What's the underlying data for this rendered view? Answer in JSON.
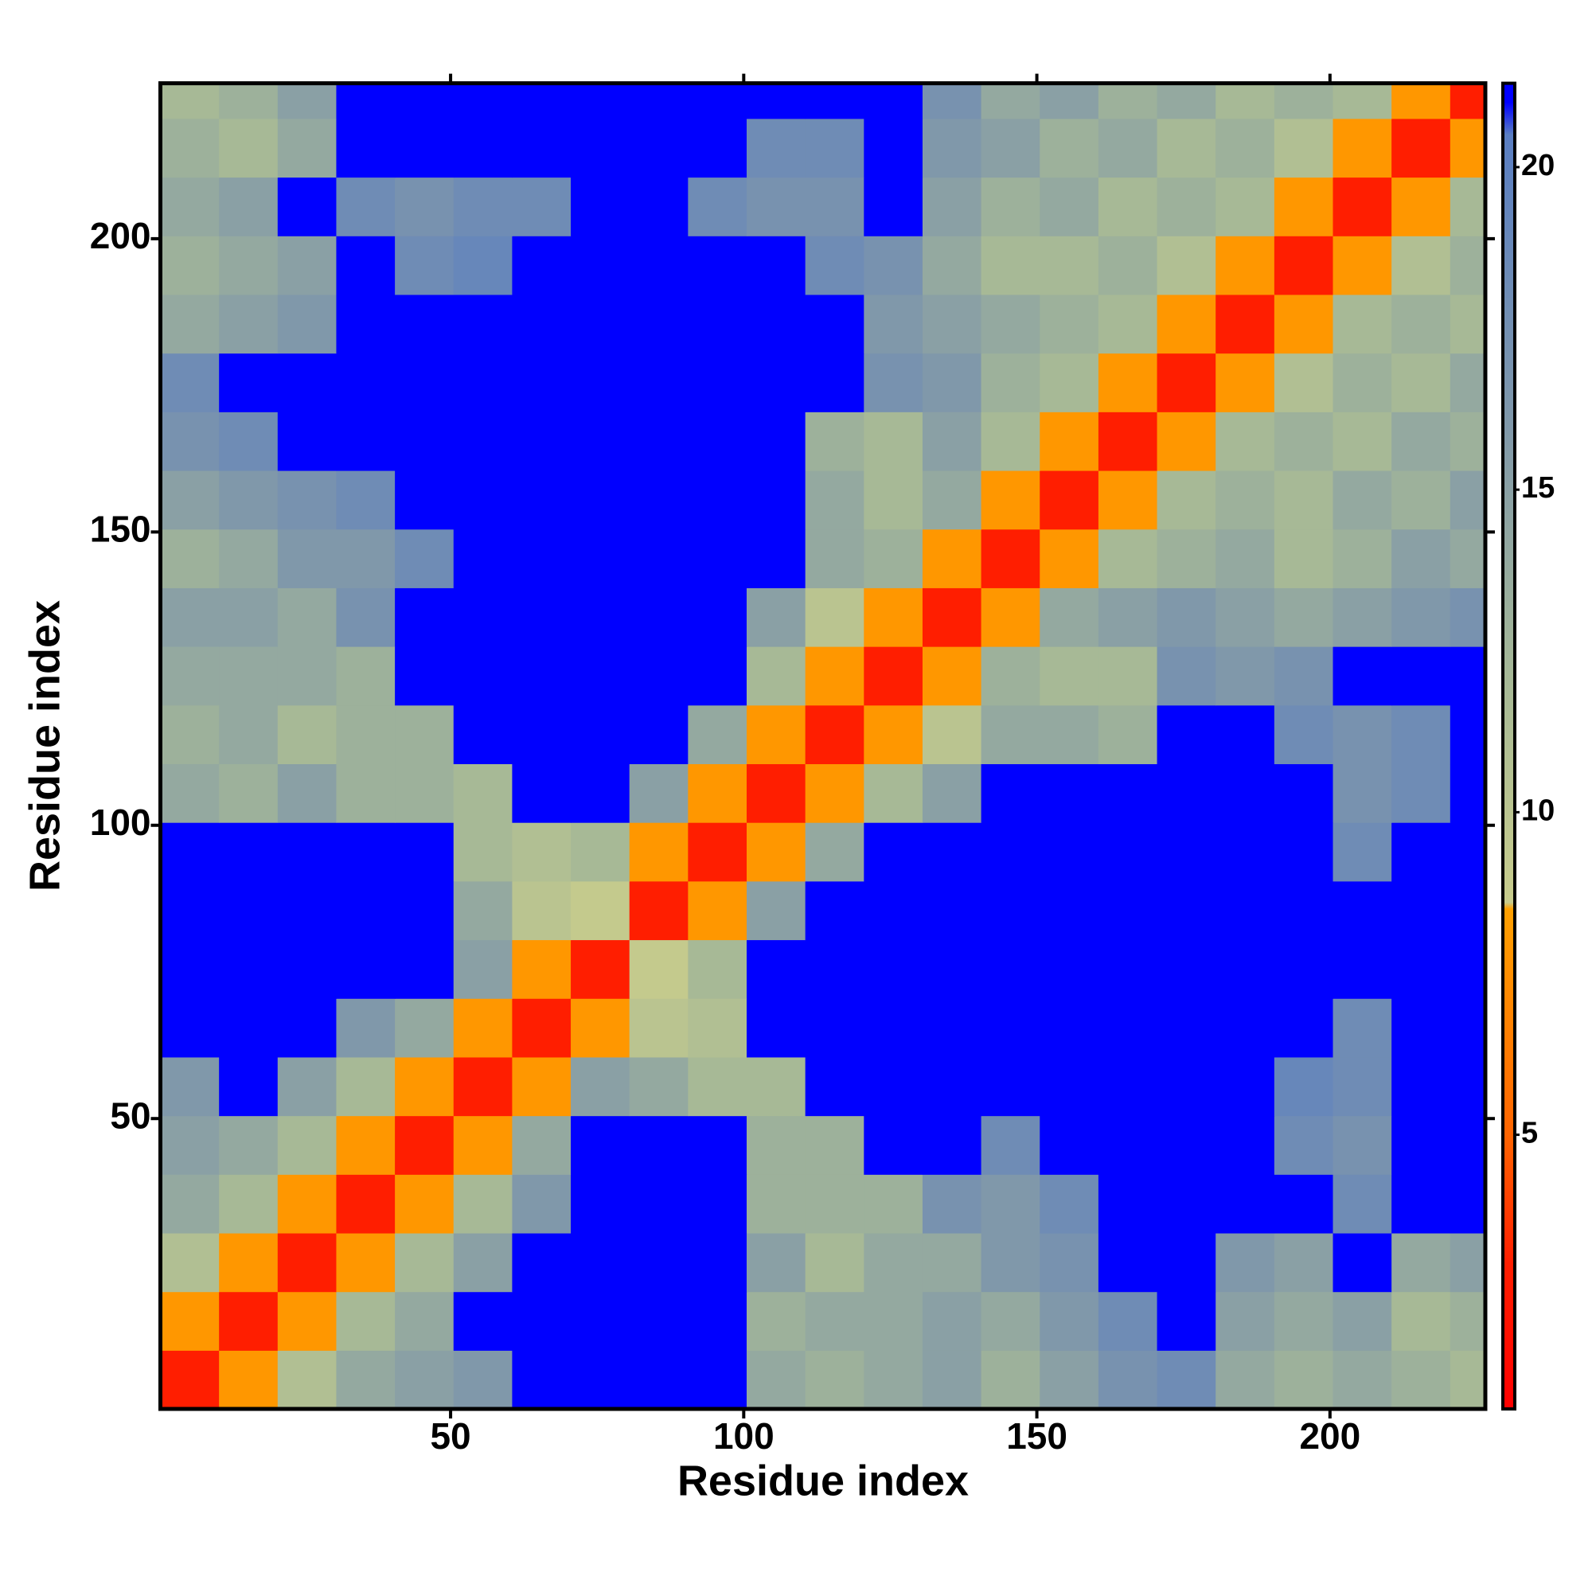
{
  "chart_data": {
    "type": "heatmap",
    "xlabel": "Residue index",
    "ylabel": "Residue index",
    "x": [
      5.5,
      15.5,
      25.5,
      35.5,
      45.5,
      55.5,
      65.5,
      75.5,
      85.5,
      95.5,
      105.5,
      115.5,
      125.5,
      135.5,
      145.5,
      155.5,
      165.5,
      175.5,
      185.5,
      195.5,
      205.5,
      215.5,
      225.5
    ],
    "y": [
      5.5,
      15.5,
      25.5,
      35.5,
      45.5,
      55.5,
      65.5,
      75.5,
      85.5,
      95.5,
      105.5,
      115.5,
      125.5,
      135.5,
      145.5,
      155.5,
      165.5,
      175.5,
      185.5,
      195.5,
      205.5,
      215.5,
      225.5
    ],
    "cell_size": 10,
    "z": [
      [
        3,
        8,
        11,
        14,
        15,
        16,
        21,
        21,
        21,
        21,
        14,
        13,
        14,
        15,
        13,
        15,
        17,
        18,
        14,
        13,
        14,
        13,
        12
      ],
      [
        8,
        3,
        8,
        12,
        14,
        21,
        21,
        21,
        21,
        21,
        13,
        14,
        14,
        15,
        14,
        16,
        18,
        21,
        15,
        14,
        15,
        12,
        13
      ],
      [
        11,
        8,
        3,
        8,
        12,
        15,
        21,
        21,
        21,
        21,
        15,
        12,
        14,
        14,
        16,
        17,
        21,
        21,
        16,
        15,
        21,
        14,
        15
      ],
      [
        14,
        12,
        8,
        3,
        8,
        12,
        16,
        21,
        21,
        21,
        13,
        13,
        13,
        17,
        16,
        18,
        21,
        21,
        21,
        21,
        18,
        21,
        21
      ],
      [
        15,
        14,
        12,
        8,
        3,
        8,
        14,
        21,
        21,
        21,
        13,
        13,
        21,
        21,
        18,
        21,
        21,
        21,
        21,
        18,
        17,
        21,
        21
      ],
      [
        16,
        21,
        15,
        12,
        8,
        3,
        8,
        15,
        14,
        12,
        12,
        21,
        21,
        21,
        21,
        21,
        21,
        21,
        21,
        19,
        18,
        21,
        21
      ],
      [
        21,
        21,
        21,
        16,
        14,
        8,
        3,
        8,
        10,
        11,
        21,
        21,
        21,
        21,
        21,
        21,
        21,
        21,
        21,
        21,
        18,
        21,
        21
      ],
      [
        21,
        21,
        21,
        21,
        21,
        15,
        8,
        3,
        9,
        12,
        21,
        21,
        21,
        21,
        21,
        21,
        21,
        21,
        21,
        21,
        21,
        21,
        21
      ],
      [
        21,
        21,
        21,
        21,
        21,
        14,
        10,
        9,
        3,
        8,
        15,
        21,
        21,
        21,
        21,
        21,
        21,
        21,
        21,
        21,
        21,
        21,
        21
      ],
      [
        21,
        21,
        21,
        21,
        21,
        12,
        11,
        12,
        8,
        3,
        8,
        14,
        21,
        21,
        21,
        21,
        21,
        21,
        21,
        21,
        18,
        21,
        21
      ],
      [
        14,
        13,
        15,
        13,
        13,
        12,
        21,
        21,
        15,
        8,
        3,
        8,
        12,
        15,
        21,
        21,
        21,
        21,
        21,
        21,
        17,
        18,
        21
      ],
      [
        13,
        14,
        12,
        13,
        13,
        21,
        21,
        21,
        21,
        14,
        8,
        3,
        8,
        10,
        14,
        14,
        13,
        21,
        21,
        18,
        17,
        18,
        21
      ],
      [
        14,
        14,
        14,
        13,
        21,
        21,
        21,
        21,
        21,
        21,
        12,
        8,
        3,
        8,
        13,
        12,
        12,
        17,
        16,
        17,
        21,
        21,
        21
      ],
      [
        15,
        15,
        14,
        17,
        21,
        21,
        21,
        21,
        21,
        21,
        15,
        10,
        8,
        3,
        8,
        14,
        15,
        16,
        15,
        14,
        15,
        16,
        17
      ],
      [
        13,
        14,
        16,
        16,
        18,
        21,
        21,
        21,
        21,
        21,
        21,
        14,
        13,
        8,
        3,
        8,
        12,
        13,
        14,
        12,
        13,
        15,
        14
      ],
      [
        15,
        16,
        17,
        18,
        21,
        21,
        21,
        21,
        21,
        21,
        21,
        14,
        12,
        14,
        8,
        3,
        8,
        12,
        13,
        12,
        14,
        13,
        15
      ],
      [
        17,
        18,
        21,
        21,
        21,
        21,
        21,
        21,
        21,
        21,
        21,
        13,
        12,
        15,
        12,
        8,
        3,
        8,
        12,
        13,
        12,
        14,
        13
      ],
      [
        18,
        21,
        21,
        21,
        21,
        21,
        21,
        21,
        21,
        21,
        21,
        21,
        17,
        16,
        13,
        12,
        8,
        3,
        8,
        11,
        13,
        12,
        14
      ],
      [
        14,
        15,
        16,
        21,
        21,
        21,
        21,
        21,
        21,
        21,
        21,
        21,
        16,
        15,
        14,
        13,
        12,
        8,
        3,
        8,
        12,
        13,
        12
      ],
      [
        13,
        14,
        15,
        21,
        18,
        19,
        21,
        21,
        21,
        21,
        21,
        18,
        17,
        14,
        12,
        12,
        13,
        11,
        8,
        3,
        8,
        11,
        13
      ],
      [
        14,
        15,
        21,
        18,
        17,
        18,
        18,
        21,
        21,
        18,
        17,
        17,
        21,
        15,
        13,
        14,
        12,
        13,
        12,
        8,
        3,
        8,
        12
      ],
      [
        13,
        12,
        14,
        21,
        21,
        21,
        21,
        21,
        21,
        21,
        18,
        18,
        21,
        16,
        15,
        13,
        14,
        12,
        13,
        11,
        8,
        3,
        8
      ],
      [
        12,
        13,
        15,
        21,
        21,
        21,
        21,
        21,
        21,
        21,
        21,
        21,
        21,
        17,
        14,
        15,
        13,
        14,
        12,
        13,
        12,
        8,
        3
      ]
    ],
    "xlim": [
      0.5,
      226.5
    ],
    "ylim": [
      0.5,
      226.5
    ],
    "xticks": [
      50,
      100,
      150,
      200
    ],
    "yticks": [
      50,
      100,
      150,
      200
    ],
    "zlim": [
      0.75,
      21.3
    ],
    "zticks": [
      5,
      10,
      15,
      20
    ],
    "colorscale": [
      [
        0.75,
        "#ff0000"
      ],
      [
        3,
        "#ff1e00"
      ],
      [
        5,
        "#ff6400"
      ],
      [
        8.5,
        "#ffa000"
      ],
      [
        8.6,
        "#c8cc8c"
      ],
      [
        12,
        "#a7b996"
      ],
      [
        16,
        "#8098aa"
      ],
      [
        20.5,
        "#5a7ec2"
      ],
      [
        21,
        "#0000ff"
      ]
    ]
  }
}
